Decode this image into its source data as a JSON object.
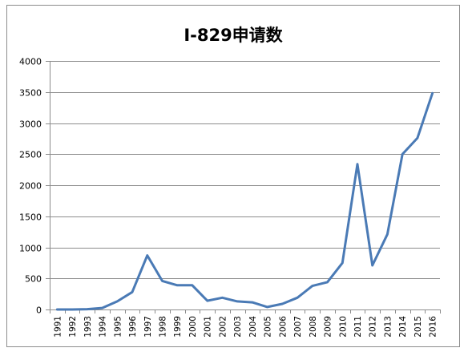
{
  "chart_data": {
    "type": "line",
    "title": "I-829申请数",
    "xlabel": "",
    "ylabel": "",
    "ylim": [
      0,
      4000
    ],
    "yticks": [
      0,
      500,
      1000,
      1500,
      2000,
      2500,
      3000,
      3500,
      4000
    ],
    "grid": true,
    "legend": "none",
    "categories": [
      "1991",
      "1992",
      "1993",
      "1994",
      "1995",
      "1996",
      "1997",
      "1998",
      "1999",
      "2000",
      "2001",
      "2002",
      "2003",
      "2004",
      "2005",
      "2006",
      "2007",
      "2008",
      "2009",
      "2010",
      "2011",
      "2012",
      "2013",
      "2014",
      "2015",
      "2016"
    ],
    "series": [
      {
        "values": [
          0,
          0,
          5,
          25,
          130,
          280,
          870,
          460,
          390,
          390,
          140,
          190,
          130,
          115,
          40,
          90,
          190,
          380,
          440,
          750,
          2340,
          710,
          1210,
          2500,
          2760,
          3480
        ],
        "color": "#4a7ab5"
      }
    ]
  }
}
